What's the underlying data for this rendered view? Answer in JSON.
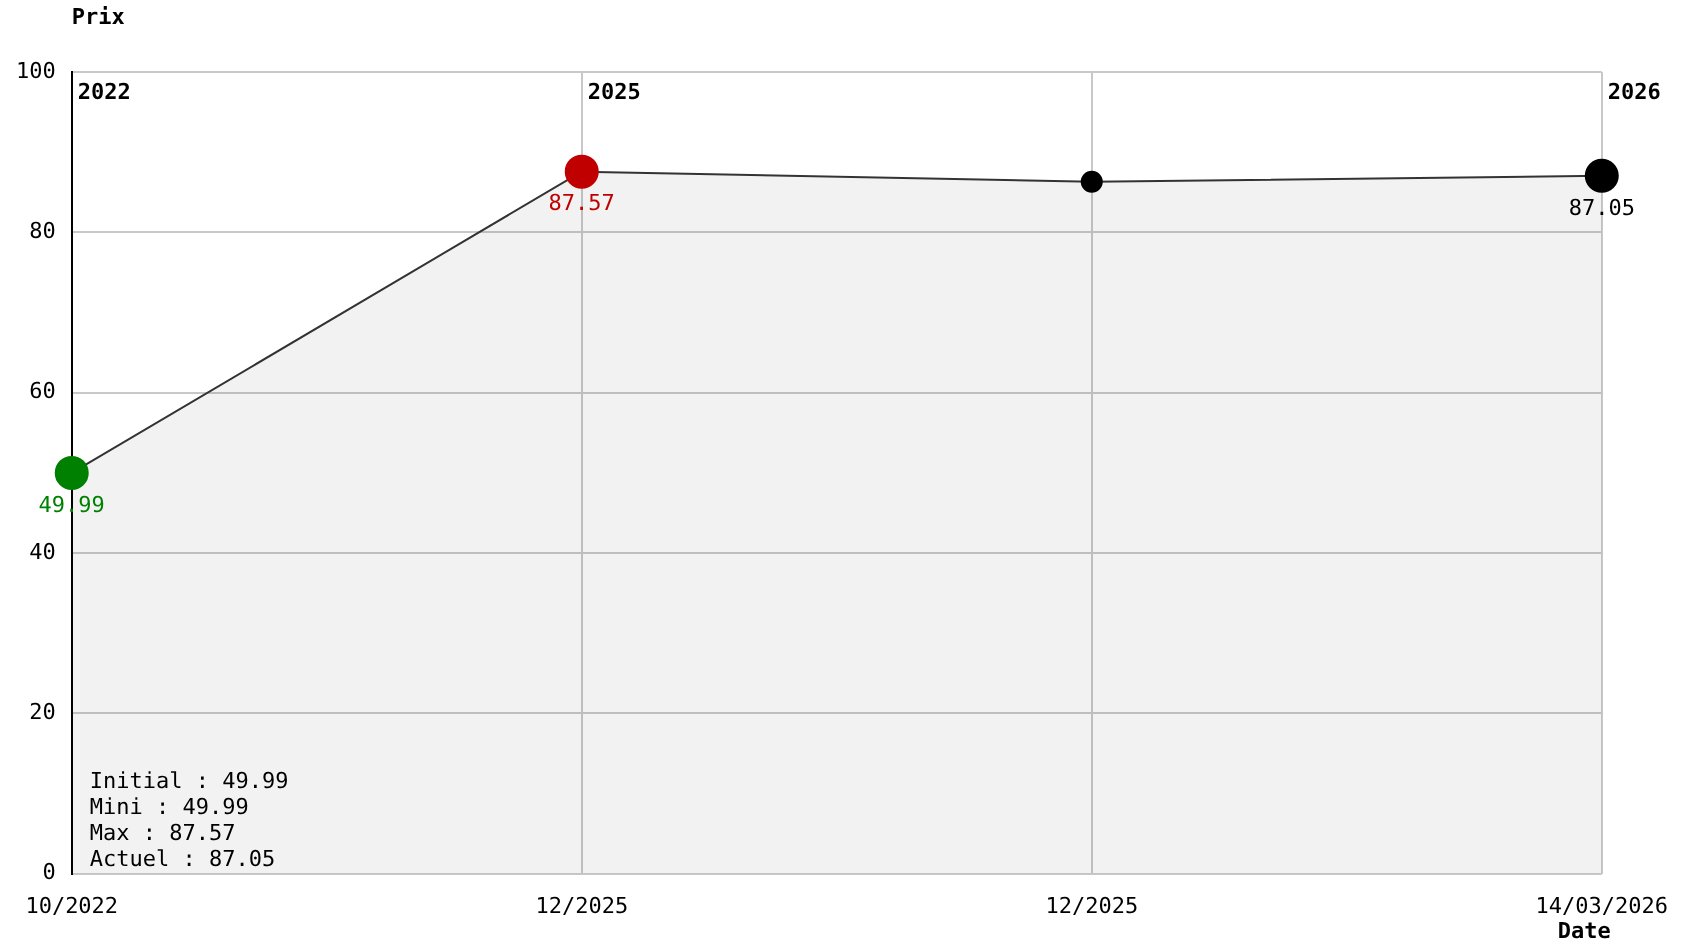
{
  "chart_data": {
    "type": "area",
    "xlabel": "Date",
    "ylabel": "Prix",
    "categories": [
      "10/2022",
      "12/2025",
      "12/2025",
      "14/03/2026"
    ],
    "series": [
      {
        "color": "#333333",
        "values": [
          49.99,
          87.57,
          86.3,
          87.05
        ],
        "colors": [
          "#008000",
          "#c00000",
          "#000000",
          "#000000"
        ],
        "value_labels": [
          "49.99",
          "87.57",
          null,
          "87.05"
        ]
      }
    ],
    "ylim": [
      0,
      100
    ],
    "yticks": [
      0,
      20,
      40,
      60,
      80,
      100
    ],
    "grid": true,
    "legend": false,
    "marker": "circle",
    "annotations": [
      "2022",
      "2025",
      "2026",
      "Initial : 49.99",
      "Mini : 49.99",
      "Max : 87.57",
      "Actuel : 87.05"
    ]
  }
}
